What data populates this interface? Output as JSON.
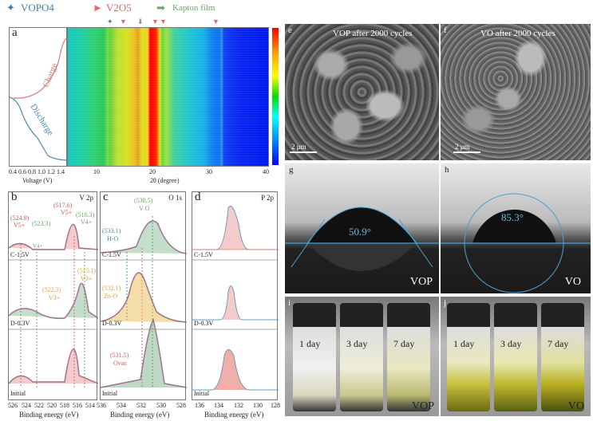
{
  "legend": {
    "vopo4": "VOPO4",
    "v2o5": "V2O5",
    "kapton": "Kapton film"
  },
  "colors": {
    "vopo4": "#3f7fa8",
    "v2o5": "#e06a6a",
    "kapton": "#6aa86a",
    "charge": "#d47a7a",
    "discharge": "#4a8ab0"
  },
  "panel_a": {
    "letter": "a",
    "charge": "Charge",
    "discharge": "Discharge",
    "voltage_ticks": [
      "0.4",
      "0.6",
      "0.8",
      "1.0",
      "1.2",
      "1.4"
    ],
    "voltage_label": "Voltage (V)",
    "theta_ticks": [
      "10",
      "20",
      "30",
      "40"
    ],
    "theta_label": "2θ (degree)"
  },
  "panel_b": {
    "letter": "b",
    "title": "V 2p",
    "rows": [
      "C-1.5V",
      "D-0.3V",
      "Initial"
    ],
    "ann": [
      "(524.9)",
      "V5+",
      "(523.3)",
      "V4+",
      "(517.6)",
      "V5+",
      "(516.3)",
      "V4+",
      "(522.3)",
      "V3+",
      "(515.1)",
      "V3+"
    ],
    "ticks": [
      "526",
      "524",
      "522",
      "520",
      "518",
      "516",
      "514"
    ],
    "xlabel": "Binding energy (eV)"
  },
  "panel_c": {
    "letter": "c",
    "title": "O 1s",
    "rows": [
      "C-1.5V",
      "D-0.3V",
      "Initial"
    ],
    "ann": [
      "(530.5)",
      "V O",
      "(533.1)",
      "H-O",
      "(532.1)",
      "Zn-O",
      "(531.5)",
      "Ovac"
    ],
    "ticks": [
      "536",
      "534",
      "532",
      "530",
      "528"
    ],
    "xlabel": "Binding energy (eV)"
  },
  "panel_d": {
    "letter": "d",
    "title": "P 2p",
    "rows": [
      "C-1.5V",
      "D-0.3V",
      "Initial"
    ],
    "ticks": [
      "136",
      "134",
      "132",
      "130",
      "128"
    ],
    "xlabel": "Binding energy (eV)"
  },
  "panel_e": {
    "letter": "e",
    "caption": "VOP after 2000 cycles",
    "scale": "2 μm"
  },
  "panel_f": {
    "letter": "f",
    "caption": "VO after 2000 cycles",
    "scale": "2 μm"
  },
  "panel_g": {
    "letter": "g",
    "angle": "50.9°",
    "sample": "VOP"
  },
  "panel_h": {
    "letter": "h",
    "angle": "85.3°",
    "sample": "VO"
  },
  "panel_i": {
    "letter": "i",
    "days": [
      "1 day",
      "3 day",
      "7 day"
    ],
    "sample": "VOP"
  },
  "panel_j": {
    "letter": "j",
    "days": [
      "1 day",
      "3 day",
      "7 day"
    ],
    "sample": "VO"
  }
}
